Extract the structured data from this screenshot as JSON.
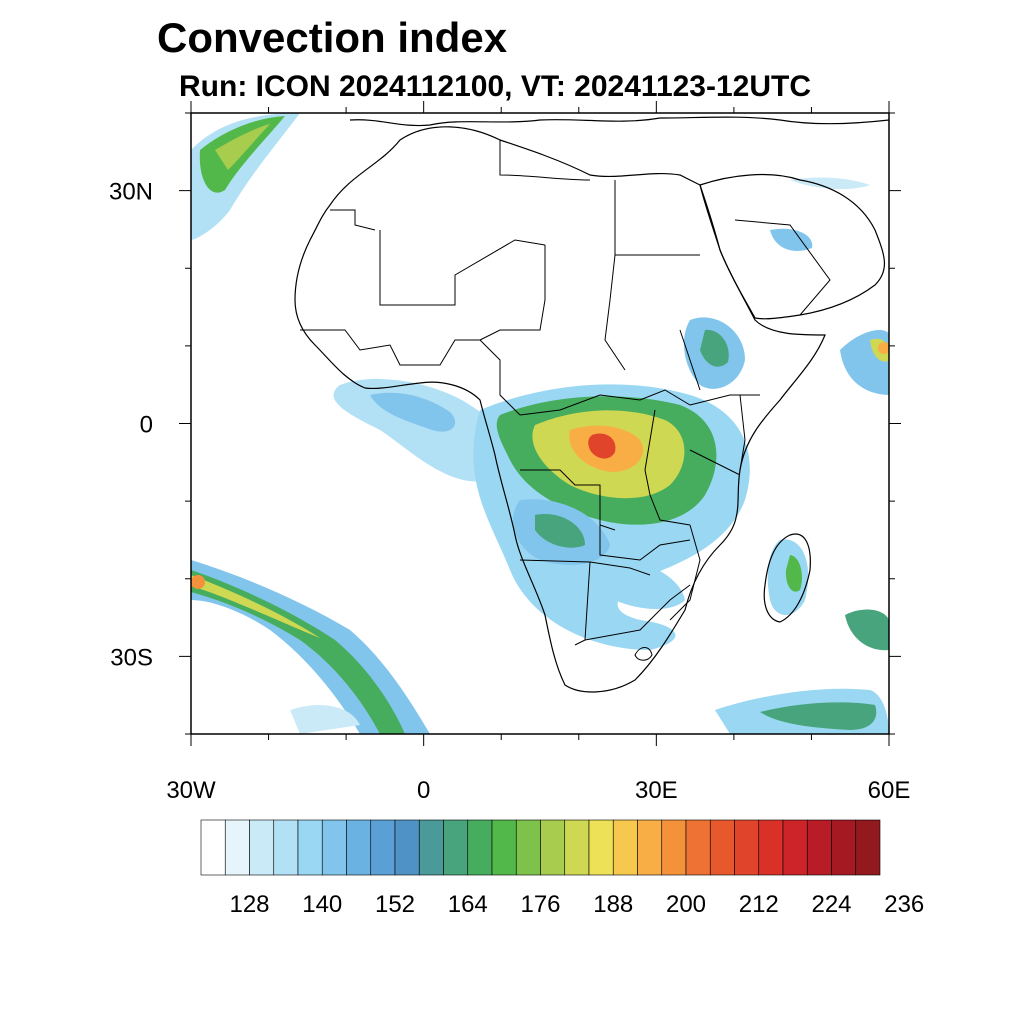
{
  "title": "Convection index",
  "subtitle": "Run: ICON 2024112100,  VT: 20241123-12UTC",
  "map": {
    "lon_range": [
      -30,
      60
    ],
    "lat_range": [
      -40,
      40
    ],
    "lat_labels": [
      {
        "lat": 30,
        "label": "30N"
      },
      {
        "lat": 0,
        "label": "0"
      },
      {
        "lat": -30,
        "label": "30S"
      }
    ],
    "lon_labels": [
      {
        "lon": -30,
        "label": "30W"
      },
      {
        "lon": 0,
        "label": "0"
      },
      {
        "lon": 30,
        "label": "30E"
      },
      {
        "lon": 60,
        "label": "60E"
      }
    ],
    "minor_tick_lats": [
      -40,
      -20,
      -10,
      10,
      20,
      40
    ],
    "minor_tick_lons": [
      -20,
      -10,
      10,
      20,
      40,
      50
    ]
  },
  "colorbar": {
    "colors": [
      "#ffffff",
      "#e6f5fb",
      "#cbeaf8",
      "#b2e1f6",
      "#99d7f3",
      "#82c5ec",
      "#6ab2e2",
      "#5a9fd6",
      "#4f93c6",
      "#4a9a9a",
      "#48a47c",
      "#46ad5e",
      "#52b84a",
      "#7dc24a",
      "#a8cc4e",
      "#cfd852",
      "#ede157",
      "#f7c84e",
      "#f8ae44",
      "#f4923c",
      "#ee7234",
      "#e8582d",
      "#e0442a",
      "#d93128",
      "#cc2428",
      "#b81c26",
      "#a51a22",
      "#921a1e"
    ],
    "tick_labels": [
      "128",
      "140",
      "152",
      "164",
      "176",
      "188",
      "200",
      "212",
      "224",
      "236"
    ]
  },
  "colors": {
    "land_outline": "#000000",
    "ocean": "#ffffff"
  }
}
